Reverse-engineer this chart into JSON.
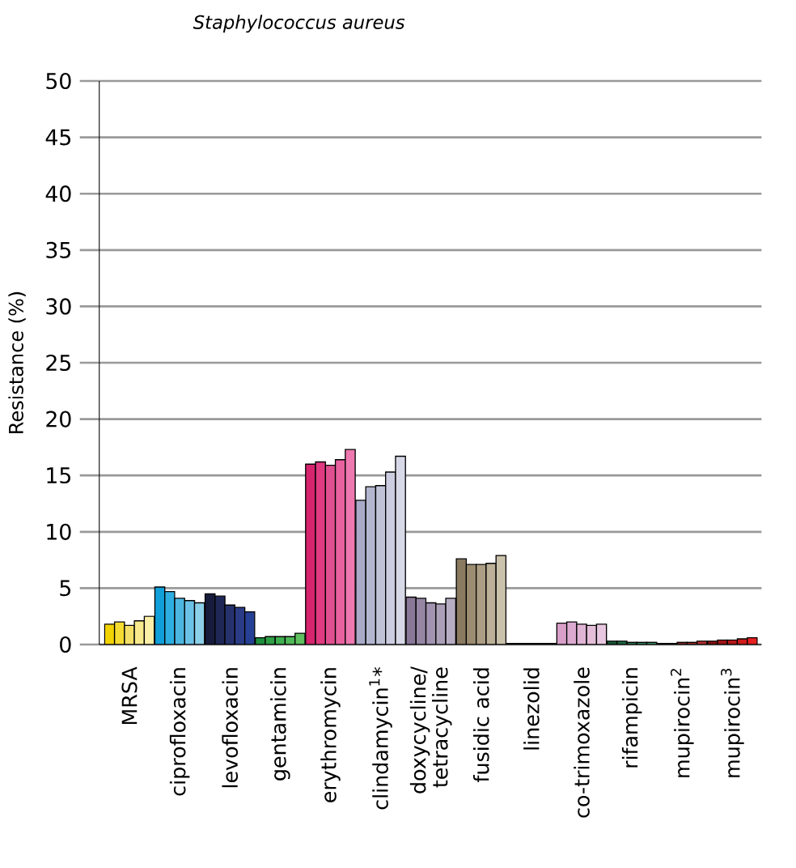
{
  "chart_data": {
    "type": "bar",
    "title": "Staphylococcus aureus",
    "ylabel": "Resistance (%)",
    "categories": [
      "MRSA",
      "ciprofloxacin",
      "levofloxacin",
      "gentamicin",
      "erythromycin",
      "clindamycin$^{1}$*",
      "doxycycline/ tetracycline",
      "fusidic acid",
      "linezolid",
      "co-trimoxazole",
      "rifampicin",
      "mupirocin$^{2}$",
      "mupirocin$^{3}$"
    ],
    "series": [
      {
        "values": [
          1.8,
          5.1,
          4.5,
          0.6,
          16.0,
          12.8,
          4.2,
          7.6,
          0.1,
          1.9,
          0.3,
          0.1,
          0.3
        ],
        "colors": [
          "#f2d300",
          "#109fd8",
          "#171c3c",
          "#1e8f3c",
          "#d6246e",
          "#a8aac8",
          "#8a7898",
          "#8a7a60",
          "#222222",
          "#d8a0c8",
          "#1a5a3a",
          "#5a1a1a",
          "#8a1010"
        ]
      },
      {
        "values": [
          2.0,
          4.7,
          4.3,
          0.7,
          16.2,
          14.0,
          4.1,
          7.1,
          0.1,
          2.0,
          0.3,
          0.1,
          0.4
        ],
        "colors": [
          "#f6dc30",
          "#2eaee0",
          "#1f2756",
          "#2fa045",
          "#e03a80",
          "#b4b6d0",
          "#9686a4",
          "#9c8c70",
          "#333333",
          "#dcaad0",
          "#1f6a44",
          "#701f1f",
          "#a01414"
        ]
      },
      {
        "values": [
          1.7,
          4.1,
          3.5,
          0.7,
          15.9,
          14.1,
          3.7,
          7.1,
          0.1,
          1.8,
          0.2,
          0.2,
          0.4
        ],
        "colors": [
          "#f4e068",
          "#4cb6e0",
          "#26326e",
          "#3faf50",
          "#e05090",
          "#c0c2d8",
          "#a294b0",
          "#ac9e84",
          "#444444",
          "#e0b4d4",
          "#287a50",
          "#882424",
          "#b81818"
        ]
      },
      {
        "values": [
          2.1,
          3.9,
          3.3,
          0.7,
          16.4,
          15.3,
          3.6,
          7.2,
          0.1,
          1.7,
          0.2,
          0.2,
          0.5
        ],
        "colors": [
          "#f8ea8c",
          "#6cc2e6",
          "#2a3c85",
          "#50b858",
          "#e862a0",
          "#cccde0",
          "#aca0b8",
          "#bcb098",
          "#555555",
          "#e4bed8",
          "#30885a",
          "#a02a2a",
          "#d01c1c"
        ]
      },
      {
        "values": [
          2.5,
          3.7,
          2.9,
          1.0,
          17.3,
          16.7,
          4.1,
          7.9,
          0.1,
          1.8,
          0.2,
          0.3,
          0.6
        ],
        "colors": [
          "#fcefa8",
          "#8ccfe8",
          "#264095",
          "#5fc060",
          "#ee78b0",
          "#d8d9e8",
          "#b8aec4",
          "#cbc2ac",
          "#666666",
          "#e8c8e0",
          "#3a9866",
          "#b83030",
          "#e82020"
        ]
      }
    ],
    "ylim": [
      0,
      50
    ],
    "yticks": [
      0,
      5,
      10,
      15,
      20,
      25,
      30,
      35,
      40,
      45,
      50
    ],
    "grid": "y"
  }
}
